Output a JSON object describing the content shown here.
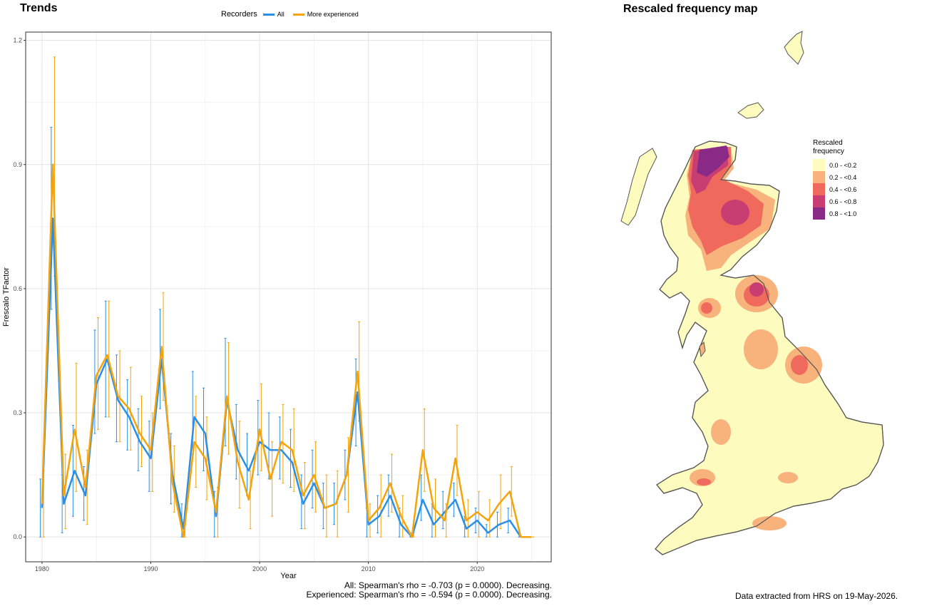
{
  "trends": {
    "title": "Trends",
    "legend": {
      "title": "Recorders",
      "items": [
        {
          "label": "All",
          "color": "#2b8fe8"
        },
        {
          "label": "More experienced",
          "color": "#f5a30a"
        }
      ]
    },
    "stats": {
      "line1": "All: Spearman's rho = -0.703 (p = 0.0000). Decreasing.",
      "line2": "Experienced: Spearman's rho = -0.594 (p = 0.0000). Decreasing."
    }
  },
  "map": {
    "title": "Rescaled frequency map",
    "legend_title": "Rescaled\nfrequency",
    "legend": [
      {
        "label": "0.0 - <0.2",
        "color": "#fdfbbd"
      },
      {
        "label": "0.2 - <0.4",
        "color": "#f8b27c"
      },
      {
        "label": "0.4 - <0.6",
        "color": "#ef6a5c"
      },
      {
        "label": "0.6 - <0.8",
        "color": "#c83d72"
      },
      {
        "label": "0.8 - <1.0",
        "color": "#8a2a87"
      }
    ],
    "footer": "Data extracted from HRS on 19-May-2026."
  },
  "chart_data": {
    "type": "line",
    "title": "Trends",
    "xlabel": "Year",
    "ylabel": "Frescalo TFactor",
    "xlim": [
      1978.5,
      2026.8
    ],
    "ylim": [
      -0.06,
      1.22
    ],
    "xticks": [
      1980,
      1990,
      2000,
      2010,
      2020
    ],
    "yticks": [
      0.0,
      0.3,
      0.6,
      0.9,
      1.2
    ],
    "ytick_labels": [
      "0.0",
      "0.3",
      "0.6",
      "0.9",
      "1.2"
    ],
    "grid": true,
    "legend_position": "top",
    "series": [
      {
        "name": "All",
        "color": "#2b8fe8",
        "x": [
          1980,
          1981,
          1982,
          1983,
          1984,
          1985,
          1986,
          1987,
          1988,
          1989,
          1990,
          1991,
          1992,
          1993,
          1994,
          1995,
          1996,
          1997,
          1998,
          1999,
          2000,
          2001,
          2002,
          2003,
          2004,
          2005,
          2006,
          2007,
          2008,
          2009,
          2010,
          2011,
          2012,
          2013,
          2014,
          2015,
          2016,
          2017,
          2018,
          2019,
          2020,
          2021,
          2022,
          2023,
          2024,
          2025
        ],
        "y": [
          0.07,
          0.77,
          0.08,
          0.16,
          0.1,
          0.37,
          0.43,
          0.33,
          0.29,
          0.23,
          0.19,
          0.43,
          0.15,
          0.02,
          0.29,
          0.25,
          0.05,
          0.33,
          0.21,
          0.16,
          0.23,
          0.21,
          0.21,
          0.18,
          0.08,
          0.13,
          0.07,
          0.08,
          0.15,
          0.35,
          0.03,
          0.05,
          0.1,
          0.03,
          0.0,
          0.09,
          0.03,
          0.06,
          0.09,
          0.02,
          0.04,
          0.01,
          0.03,
          0.04,
          0.0,
          0.0
        ],
        "lo": [
          0.0,
          0.55,
          0.01,
          0.05,
          0.04,
          0.25,
          0.29,
          0.23,
          0.21,
          0.16,
          0.11,
          0.31,
          0.08,
          0.0,
          0.2,
          0.16,
          0.0,
          0.22,
          0.14,
          0.1,
          0.15,
          0.14,
          0.14,
          0.12,
          0.02,
          0.07,
          0.02,
          0.03,
          0.09,
          0.22,
          0.0,
          0.01,
          0.05,
          0.0,
          0.0,
          0.04,
          0.0,
          0.02,
          0.05,
          0.0,
          0.01,
          0.0,
          0.0,
          0.01,
          0.0,
          0.0
        ],
        "hi": [
          0.14,
          0.99,
          0.15,
          0.27,
          0.17,
          0.5,
          0.57,
          0.44,
          0.38,
          0.31,
          0.28,
          0.55,
          0.25,
          0.08,
          0.4,
          0.36,
          0.11,
          0.48,
          0.32,
          0.25,
          0.33,
          0.3,
          0.29,
          0.26,
          0.15,
          0.21,
          0.13,
          0.13,
          0.21,
          0.43,
          0.07,
          0.1,
          0.15,
          0.07,
          0.01,
          0.15,
          0.08,
          0.11,
          0.13,
          0.05,
          0.07,
          0.03,
          0.06,
          0.07,
          0.0,
          0.0
        ]
      },
      {
        "name": "More experienced",
        "color": "#f5a30a",
        "x": [
          1980,
          1981,
          1982,
          1983,
          1984,
          1985,
          1986,
          1987,
          1988,
          1989,
          1990,
          1991,
          1992,
          1993,
          1994,
          1995,
          1996,
          1997,
          1998,
          1999,
          2000,
          2001,
          2002,
          2003,
          2004,
          2005,
          2006,
          2007,
          2008,
          2009,
          2010,
          2011,
          2012,
          2013,
          2014,
          2015,
          2016,
          2017,
          2018,
          2019,
          2020,
          2021,
          2022,
          2023,
          2024,
          2025
        ],
        "y": [
          0.08,
          0.9,
          0.1,
          0.26,
          0.12,
          0.39,
          0.44,
          0.34,
          0.31,
          0.25,
          0.21,
          0.46,
          0.13,
          0.0,
          0.23,
          0.19,
          0.06,
          0.34,
          0.18,
          0.09,
          0.26,
          0.14,
          0.23,
          0.21,
          0.1,
          0.15,
          0.07,
          0.08,
          0.15,
          0.4,
          0.04,
          0.07,
          0.13,
          0.05,
          0.0,
          0.21,
          0.07,
          0.04,
          0.19,
          0.04,
          0.06,
          0.04,
          0.08,
          0.11,
          0.0,
          0.0
        ],
        "lo": [
          0.0,
          0.63,
          0.02,
          0.11,
          0.03,
          0.26,
          0.29,
          0.23,
          0.21,
          0.17,
          0.11,
          0.33,
          0.06,
          0.0,
          0.12,
          0.09,
          0.0,
          0.2,
          0.07,
          0.02,
          0.16,
          0.05,
          0.13,
          0.11,
          0.02,
          0.06,
          0.0,
          0.0,
          0.06,
          0.28,
          0.0,
          0.0,
          0.06,
          0.0,
          0.0,
          0.11,
          0.0,
          0.0,
          0.1,
          0.0,
          0.0,
          0.0,
          0.02,
          0.05,
          0.0,
          0.0
        ],
        "hi": [
          0.16,
          1.16,
          0.2,
          0.42,
          0.21,
          0.53,
          0.57,
          0.45,
          0.41,
          0.34,
          0.3,
          0.59,
          0.22,
          0.03,
          0.34,
          0.29,
          0.12,
          0.47,
          0.28,
          0.16,
          0.37,
          0.23,
          0.32,
          0.31,
          0.18,
          0.23,
          0.15,
          0.16,
          0.24,
          0.52,
          0.08,
          0.15,
          0.2,
          0.1,
          0.01,
          0.31,
          0.14,
          0.08,
          0.27,
          0.09,
          0.11,
          0.09,
          0.15,
          0.17,
          0.0,
          0.0
        ]
      }
    ]
  }
}
